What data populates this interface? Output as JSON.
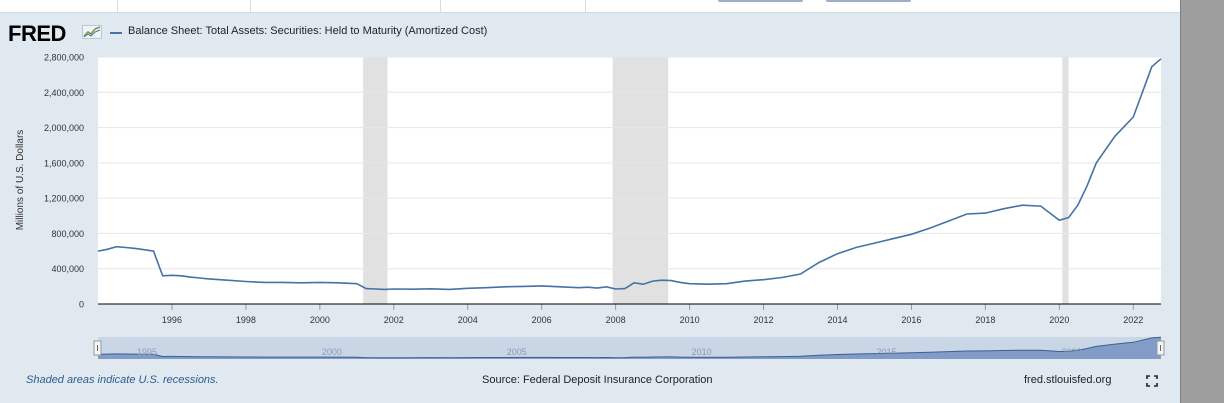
{
  "logo": {
    "text": "FRED",
    "icon": "fred-graph-icon"
  },
  "series": {
    "title": "Balance Sheet: Total Assets: Securities: Held to Maturity (Amortized Cost)",
    "color": "#4572a7"
  },
  "footer": {
    "recession_note": "Shaded areas indicate U.S. recessions.",
    "source": "Source: Federal Deposit Insurance Corporation",
    "site": "fred.stlouisfed.org",
    "fullscreen_icon": "fullscreen-icon"
  },
  "chart_data": {
    "type": "line",
    "title": "Balance Sheet: Total Assets: Securities: Held to Maturity (Amortized Cost)",
    "ylabel": "Millions of U.S. Dollars",
    "xlabel": "",
    "xlim": [
      1994.0,
      2022.75
    ],
    "ylim": [
      0,
      2800000
    ],
    "yticks": [
      0,
      400000,
      800000,
      1200000,
      1600000,
      2000000,
      2400000,
      2800000
    ],
    "ytick_labels": [
      "0",
      "400,000",
      "800,000",
      "1,200,000",
      "1,600,000",
      "2,000,000",
      "2,400,000",
      "2,800,000"
    ],
    "xticks": [
      1996,
      1998,
      2000,
      2002,
      2004,
      2006,
      2008,
      2010,
      2012,
      2014,
      2016,
      2018,
      2020,
      2022
    ],
    "recessions": [
      [
        2001.17,
        2001.83
      ],
      [
        2007.92,
        2009.42
      ],
      [
        2020.08,
        2020.25
      ]
    ],
    "navigator_labels": [
      "1995",
      "2000",
      "2005",
      "2010",
      "2015",
      "2020"
    ],
    "grid": true,
    "series": [
      {
        "name": "Balance Sheet: Total Assets: Securities: Held to Maturity (Amortized Cost)",
        "x": [
          1994.0,
          1994.25,
          1994.5,
          1994.75,
          1995.0,
          1995.25,
          1995.5,
          1995.75,
          1996.0,
          1996.25,
          1996.5,
          1996.75,
          1997.0,
          1997.5,
          1998.0,
          1998.5,
          1999.0,
          1999.5,
          2000.0,
          2000.5,
          2001.0,
          2001.25,
          2001.5,
          2001.75,
          2002.0,
          2002.5,
          2003.0,
          2003.5,
          2004.0,
          2004.5,
          2005.0,
          2005.5,
          2006.0,
          2006.5,
          2007.0,
          2007.25,
          2007.5,
          2007.75,
          2008.0,
          2008.25,
          2008.5,
          2008.75,
          2009.0,
          2009.25,
          2009.5,
          2009.75,
          2010.0,
          2010.5,
          2011.0,
          2011.5,
          2012.0,
          2012.5,
          2013.0,
          2013.5,
          2014.0,
          2014.5,
          2015.0,
          2015.5,
          2016.0,
          2016.5,
          2017.0,
          2017.5,
          2018.0,
          2018.5,
          2019.0,
          2019.5,
          2020.0,
          2020.25,
          2020.5,
          2020.75,
          2021.0,
          2021.5,
          2022.0,
          2022.5,
          2022.75
        ],
        "y": [
          600000,
          620000,
          650000,
          640000,
          630000,
          615000,
          600000,
          320000,
          325000,
          320000,
          305000,
          295000,
          285000,
          270000,
          255000,
          245000,
          245000,
          240000,
          245000,
          240000,
          230000,
          175000,
          170000,
          165000,
          170000,
          168000,
          172000,
          165000,
          178000,
          185000,
          195000,
          200000,
          205000,
          195000,
          185000,
          190000,
          180000,
          195000,
          170000,
          175000,
          240000,
          225000,
          260000,
          270000,
          265000,
          245000,
          230000,
          225000,
          230000,
          260000,
          275000,
          300000,
          340000,
          470000,
          570000,
          640000,
          690000,
          740000,
          790000,
          860000,
          940000,
          1020000,
          1030000,
          1080000,
          1120000,
          1110000,
          950000,
          980000,
          1120000,
          1340000,
          1600000,
          1900000,
          2120000,
          2690000,
          2780000
        ]
      }
    ]
  }
}
